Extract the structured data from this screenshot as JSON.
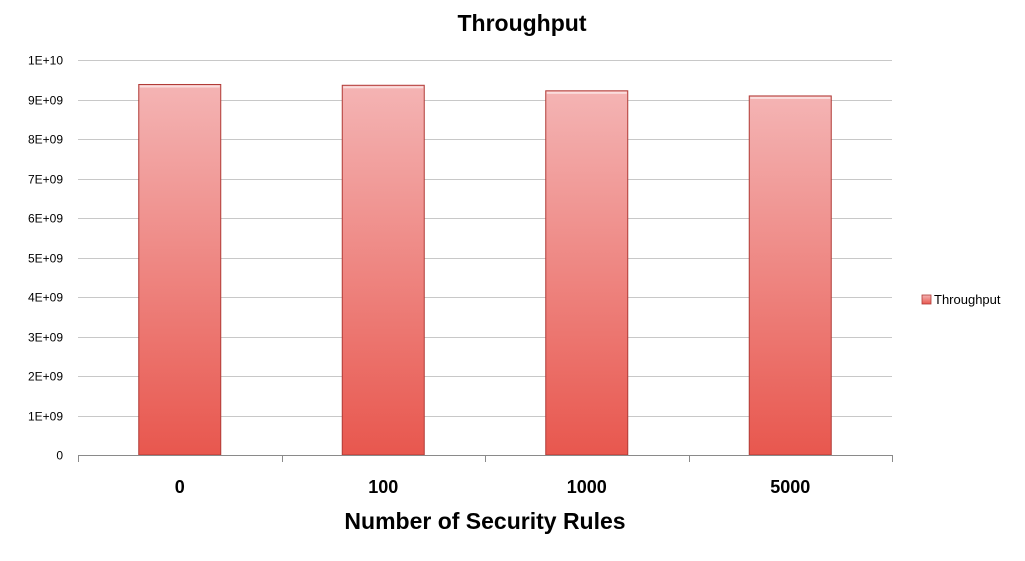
{
  "chart_data": {
    "type": "bar",
    "title": "Throughput",
    "xlabel": "Number of Security Rules",
    "ylabel": "",
    "categories": [
      "0",
      "100",
      "1000",
      "5000"
    ],
    "series": [
      {
        "name": "Throughput",
        "values": [
          9380000000.0,
          9360000000.0,
          9220000000.0,
          9090000000.0
        ]
      }
    ],
    "ylim": [
      0,
      10000000000.0
    ],
    "yticks": [
      0,
      1000000000.0,
      2000000000.0,
      3000000000.0,
      4000000000.0,
      5000000000.0,
      6000000000.0,
      7000000000.0,
      8000000000.0,
      9000000000.0,
      10000000000.0
    ],
    "ytick_labels": [
      "0",
      "1E+09",
      "2E+09",
      "3E+09",
      "4E+09",
      "5E+09",
      "6E+09",
      "7E+09",
      "8E+09",
      "9E+09",
      "1E+10"
    ],
    "grid": true,
    "legend_position": "right",
    "colors": {
      "bar_top": "#f4b4b4",
      "bar_bottom": "#e8574e",
      "bar_edge": "#b03a36",
      "grid": "#c8c8c8",
      "axis": "#8a8a8a",
      "text": "#000000"
    }
  }
}
